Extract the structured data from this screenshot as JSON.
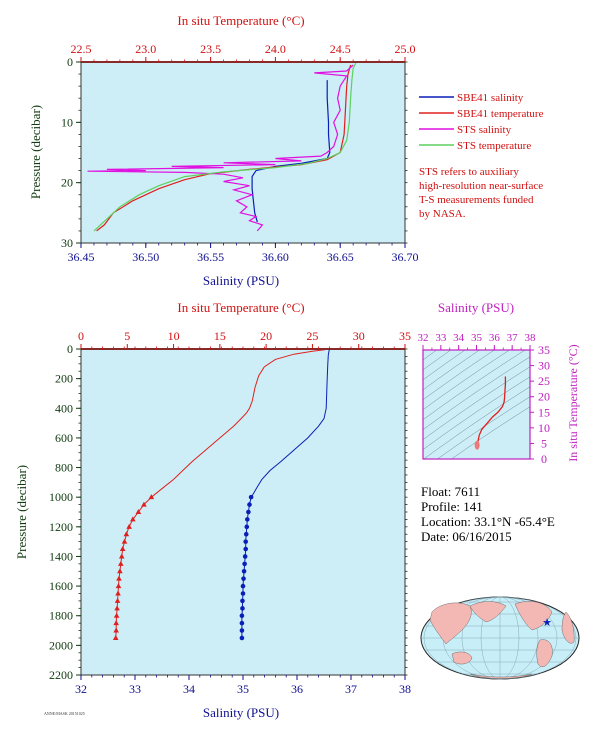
{
  "colors": {
    "plot_bg": "#cdeef6",
    "salinity": "#0a1fb8",
    "temperature": "#e0201e",
    "sts_salinity": "#e010e0",
    "sts_temperature": "#5fd05f",
    "axis_top_red": "#d01010",
    "axis_bottom_blue": "#101090",
    "axis_left_green": "#103a10",
    "magenta": "#c020c0",
    "land": "#f3b8b4",
    "ocean": "#c8eef8"
  },
  "chart_data": [
    {
      "type": "line",
      "title": "",
      "xlabel_top": "In situ Temperature (°C)",
      "xlabel_bottom": "Salinity (PSU)",
      "ylabel": "Pressure (decibar)",
      "xlim_top": [
        22.5,
        25.0
      ],
      "xlim_bottom": [
        36.45,
        36.7
      ],
      "ylim": [
        0,
        30
      ],
      "xticks_top": [
        "22.5",
        "23.0",
        "23.5",
        "24.0",
        "24.5",
        "25.0"
      ],
      "xticks_bottom": [
        "36.45",
        "36.50",
        "36.55",
        "36.60",
        "36.65",
        "36.70"
      ],
      "yticks": [
        "0",
        "10",
        "20",
        "30"
      ],
      "grid": false,
      "legend": [
        {
          "label": "SBE41 salinity",
          "series": "sbe_salinity"
        },
        {
          "label": "SBE41 temperature",
          "series": "sbe_temperature"
        },
        {
          "label": "STS salinity",
          "series": "sts_salinity"
        },
        {
          "label": "STS temperature",
          "series": "sts_temperature"
        }
      ],
      "note": [
        "STS refers to auxiliary",
        "high-resolution near-surface",
        "T-S measurements funded",
        "by NASA."
      ],
      "series": [
        {
          "id": "sbe_salinity",
          "axis": "bottom",
          "points": [
            [
              36.64,
              3
            ],
            [
              36.64,
              6
            ],
            [
              36.641,
              10
            ],
            [
              36.641,
              12
            ],
            [
              36.642,
              15
            ],
            [
              36.64,
              16
            ],
            [
              36.62,
              16.8
            ],
            [
              36.6,
              17.3
            ],
            [
              36.585,
              18
            ],
            [
              36.582,
              19
            ],
            [
              36.582,
              21
            ],
            [
              36.583,
              23
            ],
            [
              36.584,
              25
            ],
            [
              36.586,
              26.5
            ]
          ]
        },
        {
          "id": "sbe_temperature",
          "axis": "top",
          "points": [
            [
              24.58,
              0.5
            ],
            [
              24.56,
              2
            ],
            [
              24.55,
              4
            ],
            [
              24.54,
              8
            ],
            [
              24.53,
              12
            ],
            [
              24.5,
              15
            ],
            [
              24.4,
              16.2
            ],
            [
              24.2,
              17.0
            ],
            [
              23.8,
              17.8
            ],
            [
              23.5,
              18.5
            ],
            [
              23.3,
              19.5
            ],
            [
              23.1,
              21
            ],
            [
              22.9,
              23
            ],
            [
              22.75,
              25
            ],
            [
              22.68,
              27
            ],
            [
              22.62,
              28
            ]
          ]
        },
        {
          "id": "sts_salinity",
          "axis": "bottom",
          "points": [
            [
              36.66,
              0.5
            ],
            [
              36.655,
              1.5
            ],
            [
              36.63,
              1.8
            ],
            [
              36.655,
              2.3
            ],
            [
              36.65,
              4
            ],
            [
              36.648,
              6
            ],
            [
              36.65,
              8
            ],
            [
              36.645,
              10
            ],
            [
              36.648,
              12
            ],
            [
              36.645,
              14
            ],
            [
              36.64,
              15
            ],
            [
              36.635,
              15.6
            ],
            [
              36.6,
              16
            ],
            [
              36.62,
              16.4
            ],
            [
              36.56,
              16.7
            ],
            [
              36.6,
              17
            ],
            [
              36.52,
              17.3
            ],
            [
              36.56,
              17.5
            ],
            [
              36.47,
              17.8
            ],
            [
              36.5,
              18.0
            ],
            [
              36.455,
              18.1
            ],
            [
              36.53,
              18.3
            ],
            [
              36.56,
              18.6
            ],
            [
              36.575,
              19.2
            ],
            [
              36.56,
              19.8
            ],
            [
              36.58,
              20.5
            ],
            [
              36.568,
              21.2
            ],
            [
              36.582,
              22
            ],
            [
              36.57,
              23
            ],
            [
              36.578,
              24
            ],
            [
              36.573,
              25
            ],
            [
              36.585,
              25.6
            ],
            [
              36.58,
              26.3
            ],
            [
              36.59,
              27
            ],
            [
              36.586,
              28
            ]
          ]
        },
        {
          "id": "sts_temperature",
          "axis": "top",
          "points": [
            [
              24.62,
              0.2
            ],
            [
              24.6,
              1
            ],
            [
              24.59,
              3
            ],
            [
              24.58,
              6
            ],
            [
              24.57,
              10
            ],
            [
              24.55,
              13
            ],
            [
              24.5,
              15.0
            ],
            [
              24.4,
              16.0
            ],
            [
              24.25,
              16.8
            ],
            [
              24.0,
              17.5
            ],
            [
              23.6,
              18.2
            ],
            [
              23.3,
              19.0
            ],
            [
              23.1,
              20.5
            ],
            [
              22.95,
              22
            ],
            [
              22.8,
              24
            ],
            [
              22.7,
              26
            ],
            [
              22.6,
              28
            ]
          ]
        }
      ]
    },
    {
      "type": "line",
      "title": "",
      "xlabel_top": "In situ Temperature (°C)",
      "xlabel_bottom": "Salinity (PSU)",
      "ylabel": "Pressure (decibar)",
      "xlim_top": [
        0,
        35
      ],
      "xlim_bottom": [
        32,
        38
      ],
      "ylim": [
        0,
        2200
      ],
      "xticks_top": [
        "0",
        "5",
        "10",
        "15",
        "20",
        "25",
        "30",
        "35"
      ],
      "xticks_bottom": [
        "32",
        "33",
        "34",
        "35",
        "36",
        "37",
        "38"
      ],
      "yticks": [
        "0",
        "200",
        "400",
        "600",
        "800",
        "1000",
        "1200",
        "1400",
        "1600",
        "1800",
        "2000",
        "2200"
      ],
      "grid": false,
      "series": [
        {
          "id": "temperature",
          "axis": "top",
          "marker": "triangle",
          "points": [
            [
              26.5,
              0
            ],
            [
              26.3,
              5
            ],
            [
              25,
              15
            ],
            [
              23,
              35
            ],
            [
              21,
              70
            ],
            [
              19.8,
              120
            ],
            [
              19.2,
              180
            ],
            [
              18.8,
              260
            ],
            [
              18.5,
              350
            ],
            [
              18.2,
              400
            ],
            [
              17.9,
              430
            ],
            [
              17.3,
              470
            ],
            [
              16.5,
              520
            ],
            [
              15.0,
              600
            ],
            [
              13.5,
              680
            ],
            [
              12.0,
              760
            ],
            [
              11.0,
              820
            ],
            [
              10.0,
              880
            ],
            [
              9.0,
              930
            ],
            [
              8.0,
              980
            ],
            [
              7.6,
              1000
            ],
            [
              6.8,
              1050
            ],
            [
              6.2,
              1100
            ],
            [
              5.6,
              1150
            ],
            [
              5.2,
              1200
            ],
            [
              4.9,
              1250
            ],
            [
              4.7,
              1300
            ],
            [
              4.5,
              1350
            ],
            [
              4.4,
              1400
            ],
            [
              4.3,
              1450
            ],
            [
              4.2,
              1500
            ],
            [
              4.1,
              1550
            ],
            [
              4.05,
              1600
            ],
            [
              4.0,
              1650
            ],
            [
              3.95,
              1700
            ],
            [
              3.9,
              1750
            ],
            [
              3.85,
              1800
            ],
            [
              3.8,
              1850
            ],
            [
              3.8,
              1900
            ],
            [
              3.75,
              1950
            ]
          ]
        },
        {
          "id": "salinity",
          "axis": "bottom",
          "marker": "circle",
          "points": [
            [
              36.6,
              0
            ],
            [
              36.58,
              40
            ],
            [
              36.57,
              100
            ],
            [
              36.56,
              200
            ],
            [
              36.55,
              300
            ],
            [
              36.54,
              400
            ],
            [
              36.5,
              470
            ],
            [
              36.4,
              520
            ],
            [
              36.2,
              600
            ],
            [
              35.95,
              680
            ],
            [
              35.7,
              760
            ],
            [
              35.5,
              820
            ],
            [
              35.35,
              880
            ],
            [
              35.25,
              940
            ],
            [
              35.17,
              990
            ],
            [
              35.15,
              1000
            ],
            [
              35.12,
              1050
            ],
            [
              35.1,
              1100
            ],
            [
              35.08,
              1150
            ],
            [
              35.07,
              1200
            ],
            [
              35.06,
              1250
            ],
            [
              35.05,
              1300
            ],
            [
              35.05,
              1350
            ],
            [
              35.04,
              1400
            ],
            [
              35.03,
              1450
            ],
            [
              35.02,
              1500
            ],
            [
              35.01,
              1550
            ],
            [
              35.0,
              1600
            ],
            [
              35.0,
              1650
            ],
            [
              34.99,
              1700
            ],
            [
              34.99,
              1750
            ],
            [
              34.98,
              1800
            ],
            [
              34.98,
              1850
            ],
            [
              34.98,
              1900
            ],
            [
              34.98,
              1950
            ]
          ]
        }
      ]
    },
    {
      "type": "line",
      "title": "",
      "xlabel_top": "Salinity (PSU)",
      "ylabel": "In situ Temperature (°C)",
      "xlim": [
        32,
        38
      ],
      "ylim": [
        0,
        35
      ],
      "xticks": [
        "32",
        "33",
        "34",
        "35",
        "36",
        "37",
        "38"
      ],
      "yticks": [
        "0",
        "5",
        "10",
        "15",
        "20",
        "25",
        "30",
        "35"
      ],
      "grid": false,
      "series": [
        {
          "id": "ts_curve",
          "points": [
            [
              34.98,
              3.8
            ],
            [
              35.0,
              4.0
            ],
            [
              35.05,
              4.7
            ],
            [
              35.1,
              6.2
            ],
            [
              35.15,
              7.6
            ],
            [
              35.3,
              9.5
            ],
            [
              35.6,
              11.5
            ],
            [
              35.9,
              13.5
            ],
            [
              36.2,
              15.0
            ],
            [
              36.45,
              16.8
            ],
            [
              36.55,
              18.3
            ],
            [
              36.57,
              19.5
            ],
            [
              36.6,
              22
            ],
            [
              36.62,
              24
            ],
            [
              36.62,
              26.5
            ]
          ]
        }
      ]
    }
  ],
  "info": {
    "float": "Float: 7611",
    "profile": "Profile: 141",
    "location": "Location: 33.1°N -65.4°E",
    "date": "Date: 06/16/2015"
  },
  "footer_stamp": "ANNE/MASK 20151025"
}
